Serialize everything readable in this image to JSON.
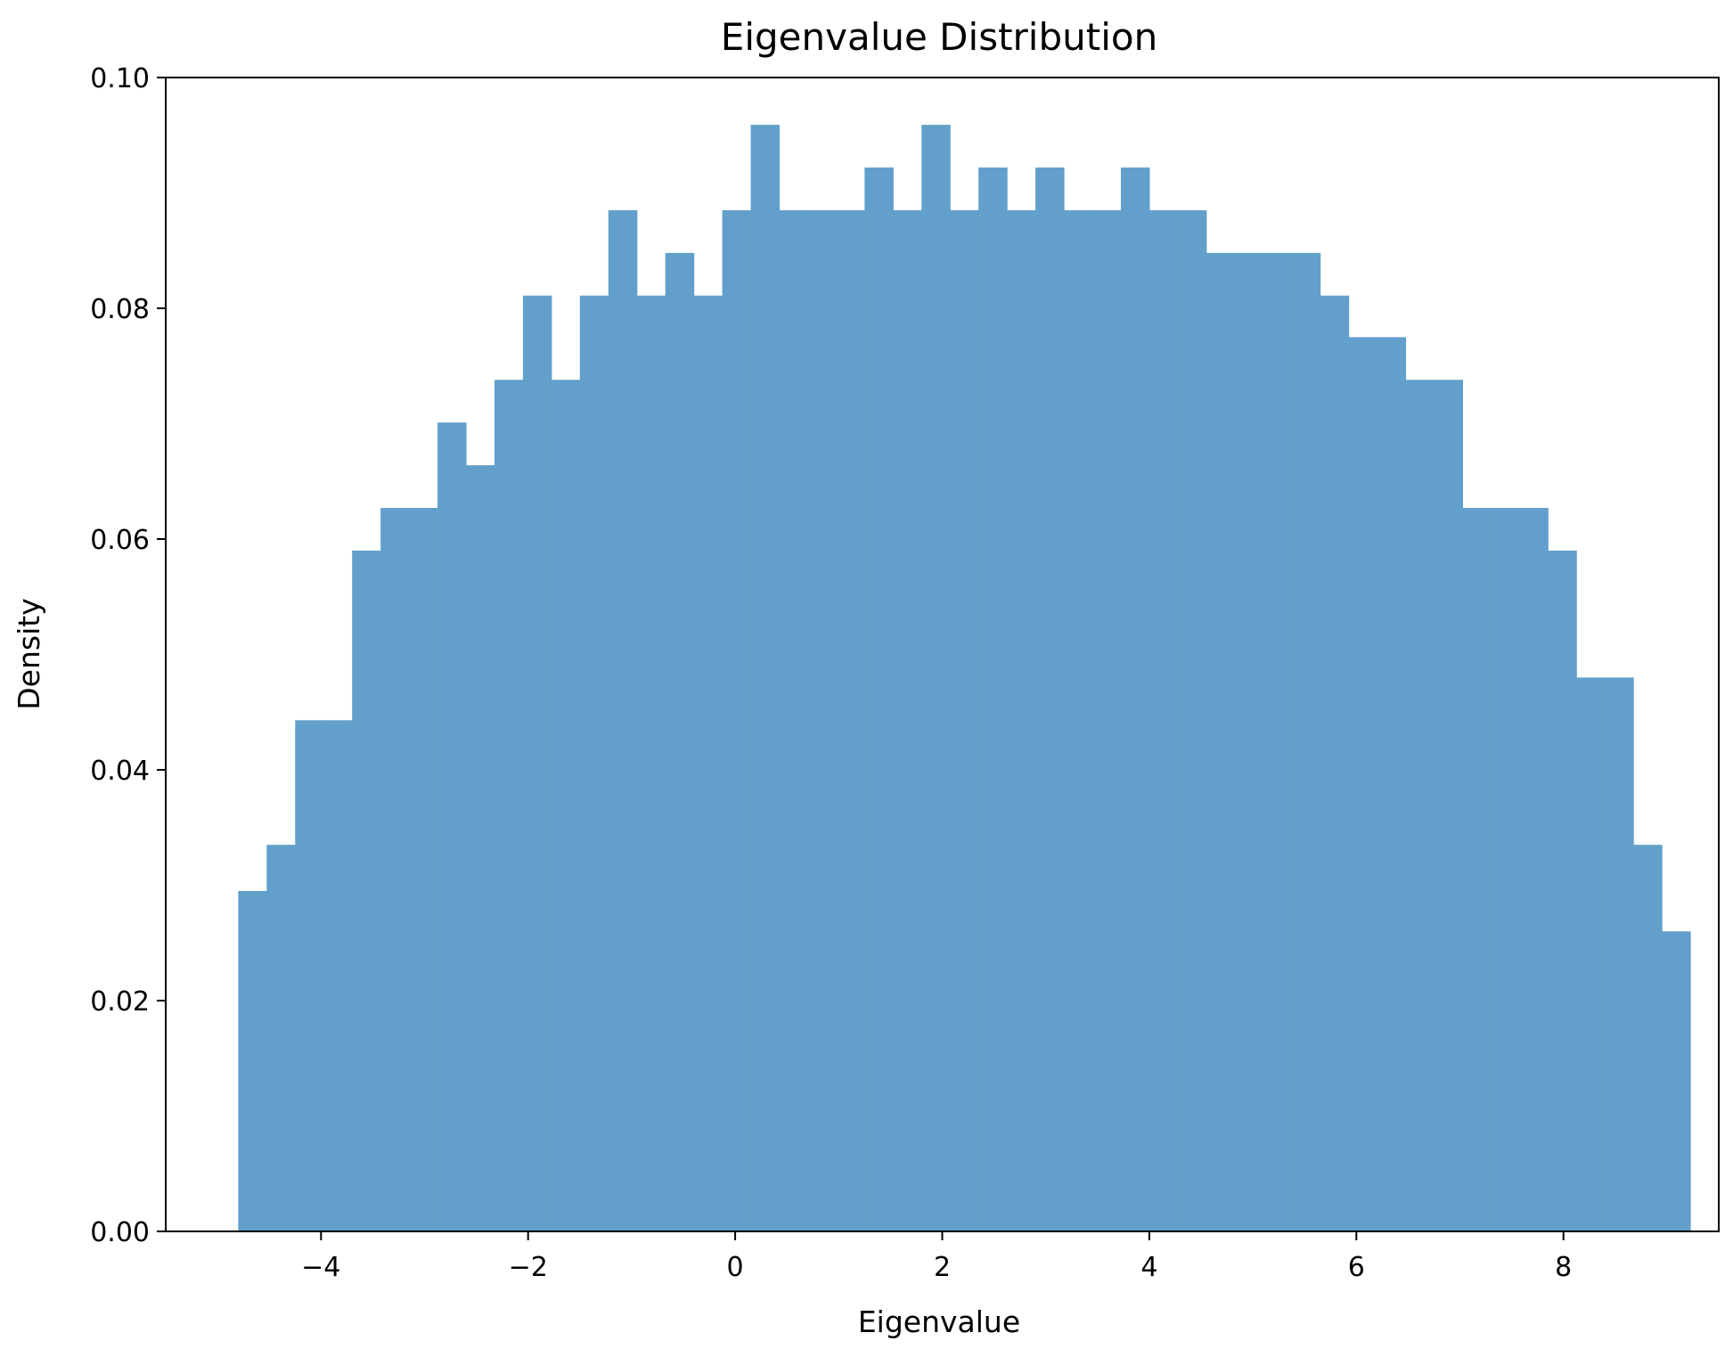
{
  "chart_data": {
    "type": "bar",
    "title": "Eigenvalue Distribution",
    "xlabel": "Eigenvalue",
    "ylabel": "Density",
    "xlim": [
      -5.5,
      9.5
    ],
    "ylim": [
      0,
      0.1
    ],
    "xticks": [
      -4,
      -2,
      0,
      2,
      4,
      6,
      8
    ],
    "xtick_labels": [
      "−4",
      "−2",
      "0",
      "2",
      "4",
      "6",
      "8"
    ],
    "yticks": [
      0,
      0.02,
      0.04,
      0.06,
      0.08,
      0.1
    ],
    "ytick_labels": [
      "0.00",
      "0.02",
      "0.04",
      "0.06",
      "0.08",
      "0.10"
    ],
    "bar_color": "#62a0cb",
    "grid": false,
    "bins": {
      "start": -4.8,
      "width": 0.275,
      "values": [
        0.0295,
        0.0335,
        0.0443,
        0.0443,
        0.059,
        0.0627,
        0.0627,
        0.0701,
        0.0664,
        0.0738,
        0.0811,
        0.0738,
        0.0811,
        0.0885,
        0.0811,
        0.0848,
        0.0811,
        0.0885,
        0.0959,
        0.0885,
        0.0885,
        0.0885,
        0.0922,
        0.0885,
        0.0959,
        0.0885,
        0.0922,
        0.0885,
        0.0922,
        0.0885,
        0.0885,
        0.0922,
        0.0885,
        0.0885,
        0.0848,
        0.0848,
        0.0848,
        0.0848,
        0.0811,
        0.0775,
        0.0775,
        0.0738,
        0.0738,
        0.0627,
        0.0627,
        0.0627,
        0.059,
        0.048,
        0.048,
        0.0335,
        0.026
      ]
    }
  }
}
